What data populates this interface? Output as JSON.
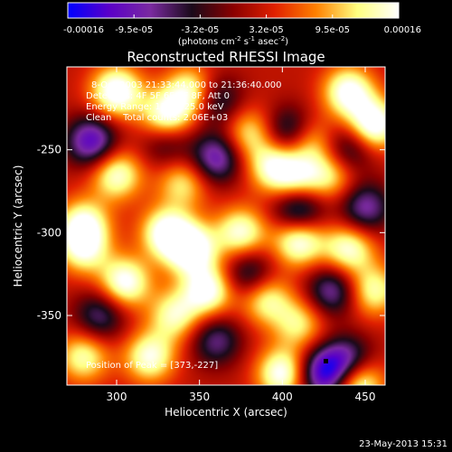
{
  "colorbar": {
    "tick_labels": [
      "-0.00016",
      "-9.5e-05",
      "-3.2e-05",
      "3.2e-05",
      "9.5e-05",
      "0.00016"
    ],
    "range": [
      -0.00016,
      0.00016
    ],
    "unit_label_main": "(photons cm",
    "unit_label_sup1": "-2",
    "unit_label_mid": " s",
    "unit_label_sup2": "-1",
    "unit_label_end": " asec",
    "unit_label_sup3": "-2",
    "unit_label_close": ")",
    "colors": [
      "#0000ff",
      "#5a00c8",
      "#7a2aa0",
      "#1a0a1a",
      "#8a0000",
      "#e02000",
      "#ff8000",
      "#ffff80",
      "#ffffff"
    ]
  },
  "chart_data": {
    "type": "heatmap",
    "title": "Reconstructed RHESSI Image",
    "xlabel": "Heliocentric X (arcsec)",
    "ylabel": "Heliocentric Y (arcsec)",
    "xlim": [
      270,
      462
    ],
    "ylim": [
      -392,
      -200
    ],
    "x_ticks": [
      300,
      350,
      400,
      450
    ],
    "y_ticks": [
      -250,
      -300,
      -350
    ],
    "info_lines": [
      "8-Oct-2003 21:33:44.000 to 21:36:40.000",
      "Detectors: 4F 5F 6F 7F 8F, Att 0",
      "Energy Range: 12.0 - 25.0 keV",
      "Clean    Total counts: 2.06E+03"
    ],
    "peak_text": "Position of Peak = [373,-227]",
    "blobs": [
      {
        "x": 300,
        "y": -215,
        "v": 1.0
      },
      {
        "x": 330,
        "y": -230,
        "v": 0.9
      },
      {
        "x": 345,
        "y": -215,
        "v": 0.8
      },
      {
        "x": 440,
        "y": -215,
        "v": 0.9
      },
      {
        "x": 455,
        "y": -235,
        "v": 1.0
      },
      {
        "x": 415,
        "y": -245,
        "v": 0.7
      },
      {
        "x": 380,
        "y": -240,
        "v": 0.6
      },
      {
        "x": 395,
        "y": -260,
        "v": 0.8
      },
      {
        "x": 410,
        "y": -270,
        "v": 0.7
      },
      {
        "x": 430,
        "y": -265,
        "v": 0.6
      },
      {
        "x": 300,
        "y": -265,
        "v": 0.8
      },
      {
        "x": 340,
        "y": -270,
        "v": 0.6
      },
      {
        "x": 330,
        "y": -300,
        "v": 0.9
      },
      {
        "x": 345,
        "y": -310,
        "v": 1.0
      },
      {
        "x": 375,
        "y": -300,
        "v": 0.8
      },
      {
        "x": 305,
        "y": -330,
        "v": 0.9
      },
      {
        "x": 280,
        "y": -295,
        "v": 0.8
      },
      {
        "x": 280,
        "y": -310,
        "v": 0.7
      },
      {
        "x": 410,
        "y": -305,
        "v": 0.9
      },
      {
        "x": 440,
        "y": -310,
        "v": 0.8
      },
      {
        "x": 455,
        "y": -335,
        "v": 0.7
      },
      {
        "x": 355,
        "y": -335,
        "v": 0.9
      },
      {
        "x": 390,
        "y": -340,
        "v": 0.7
      },
      {
        "x": 335,
        "y": -350,
        "v": 0.7
      },
      {
        "x": 410,
        "y": -355,
        "v": 0.6
      },
      {
        "x": 320,
        "y": -375,
        "v": 0.8
      },
      {
        "x": 400,
        "y": -385,
        "v": 0.9
      },
      {
        "x": 445,
        "y": -390,
        "v": 1.0
      },
      {
        "x": 280,
        "y": -375,
        "v": 0.7
      },
      {
        "x": 285,
        "y": -245,
        "v": -0.9
      },
      {
        "x": 360,
        "y": -255,
        "v": -0.8
      },
      {
        "x": 405,
        "y": -240,
        "v": -0.8
      },
      {
        "x": 360,
        "y": -220,
        "v": -0.6
      },
      {
        "x": 440,
        "y": -250,
        "v": -0.6
      },
      {
        "x": 410,
        "y": -285,
        "v": -0.9
      },
      {
        "x": 450,
        "y": -285,
        "v": -0.7
      },
      {
        "x": 380,
        "y": -325,
        "v": -0.6
      },
      {
        "x": 430,
        "y": -335,
        "v": -0.7
      },
      {
        "x": 290,
        "y": -350,
        "v": -0.6
      },
      {
        "x": 360,
        "y": -365,
        "v": -0.6
      },
      {
        "x": 425,
        "y": -385,
        "v": -1.0
      },
      {
        "x": 440,
        "y": -378,
        "v": -0.8
      },
      {
        "x": 330,
        "y": -245,
        "v": -0.5
      }
    ]
  },
  "footer": {
    "timestamp": "23-May-2013 15:31"
  }
}
